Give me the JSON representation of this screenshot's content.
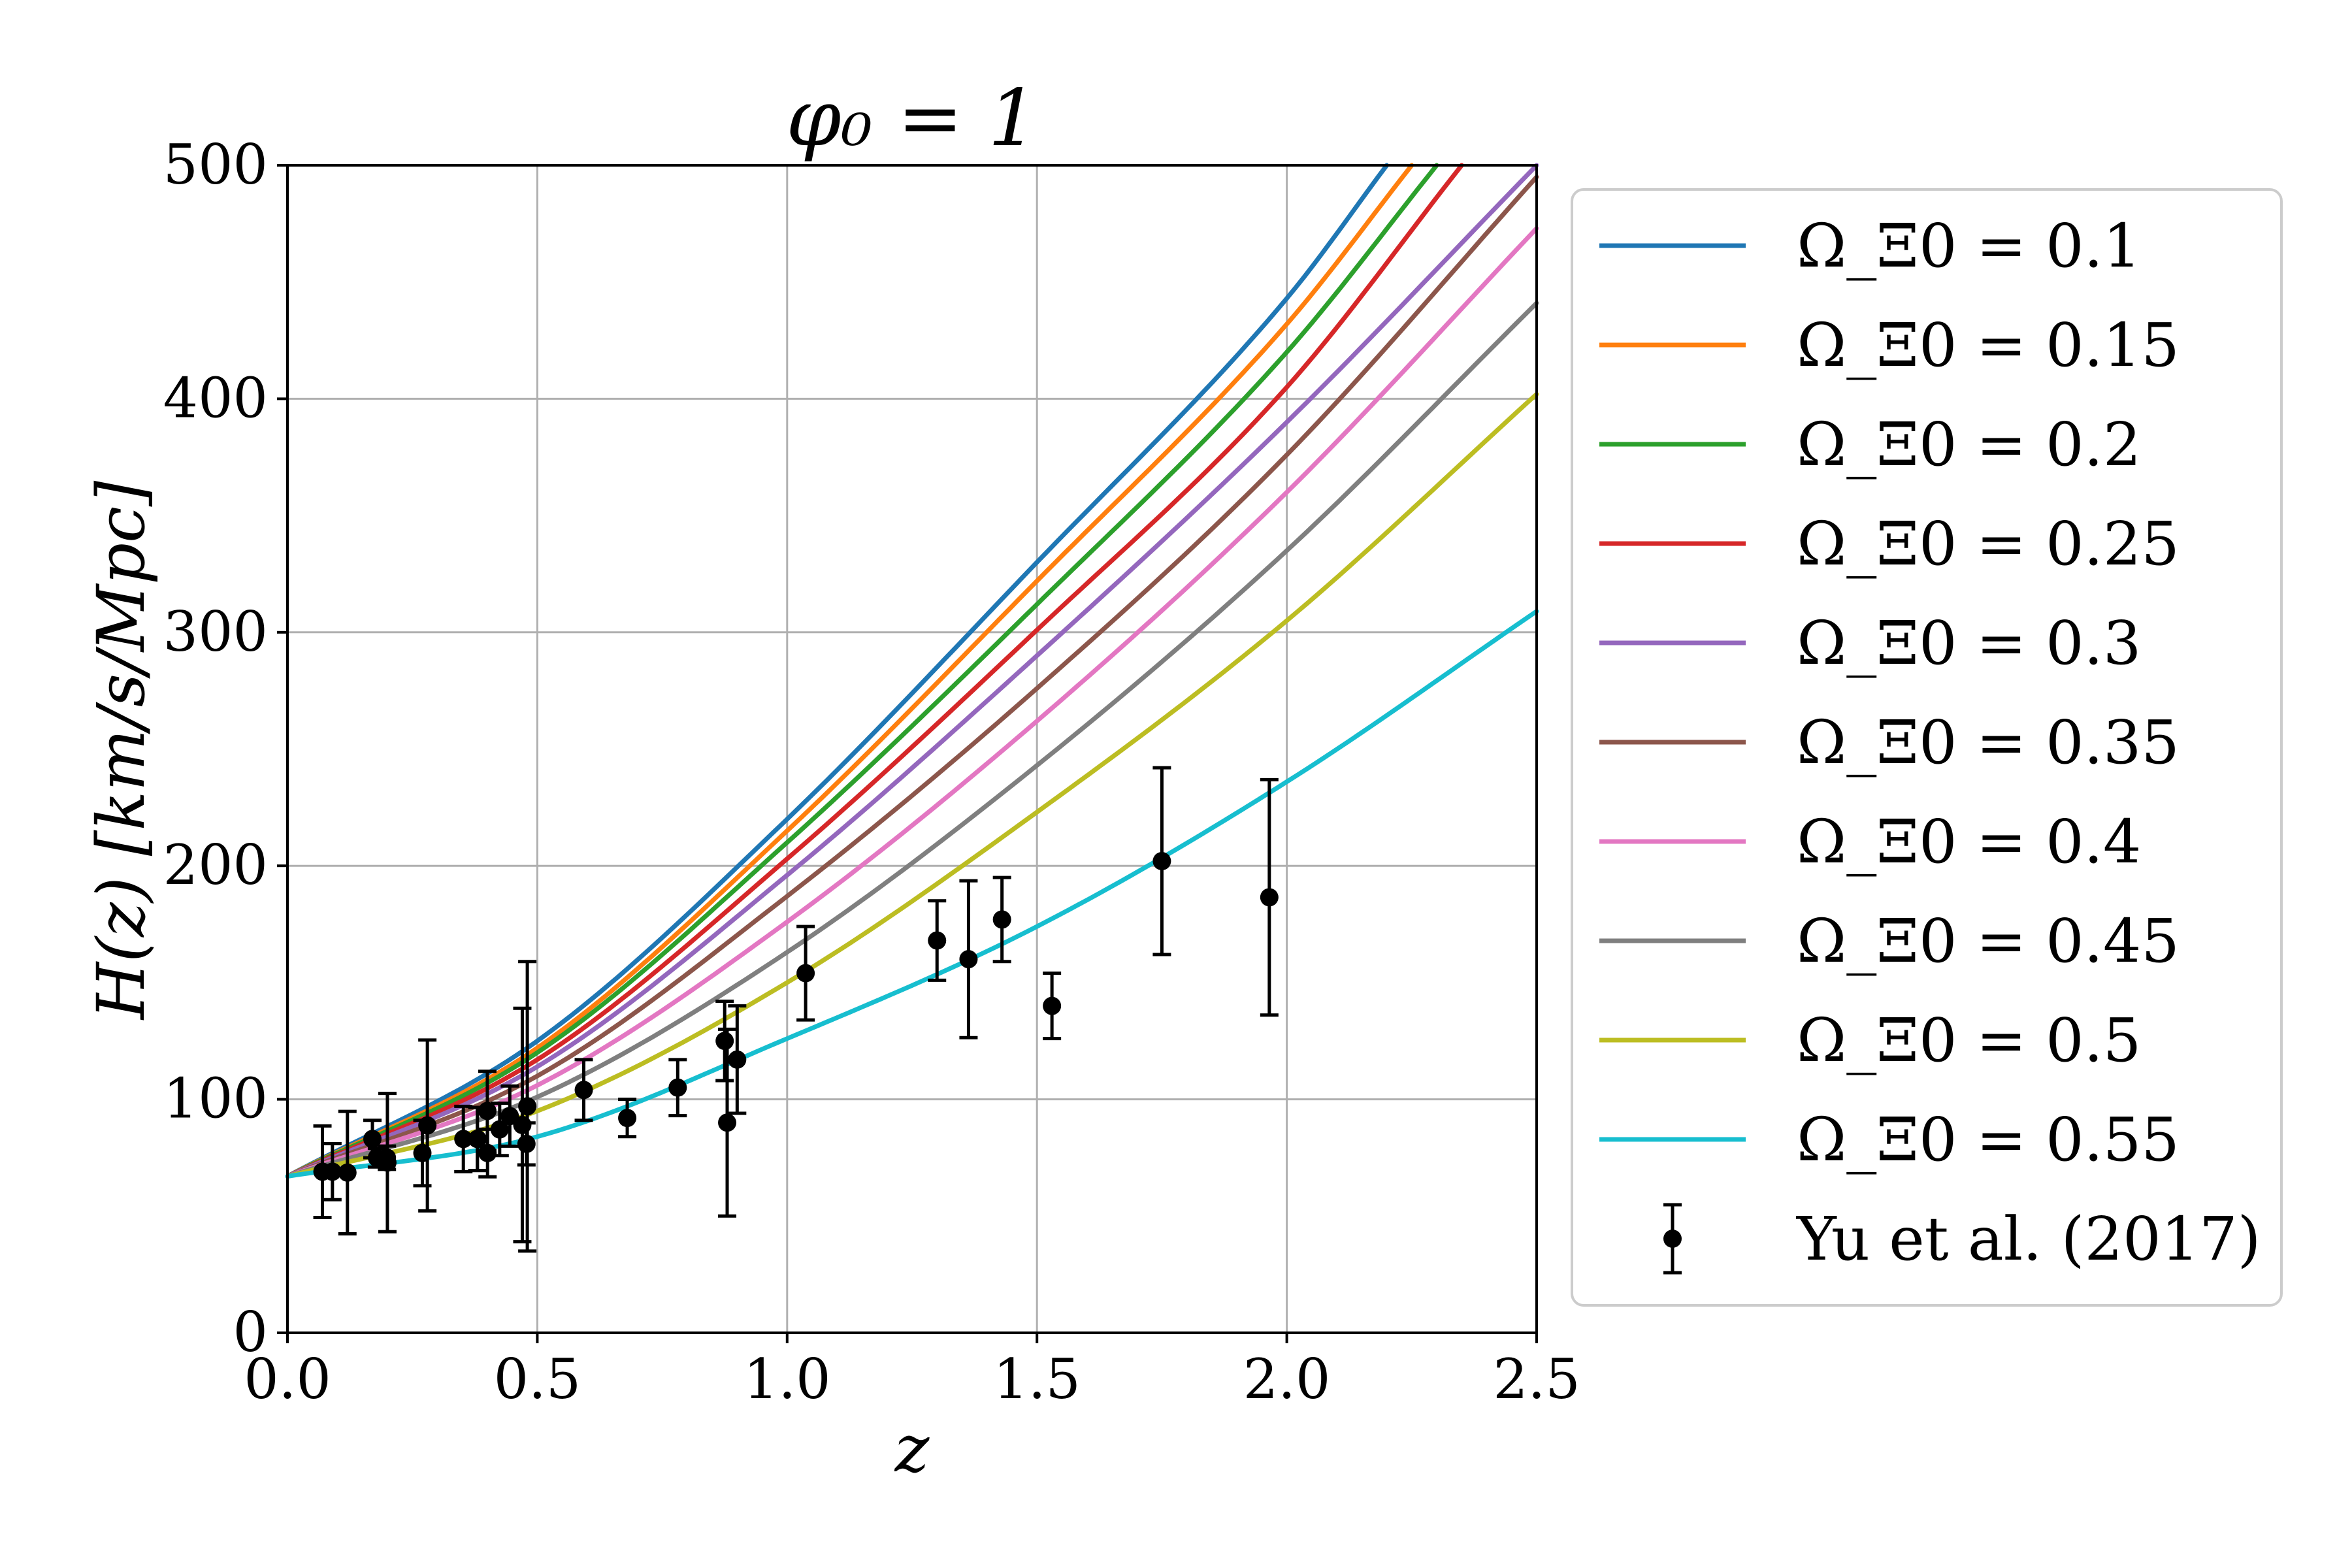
{
  "chart_data": {
    "type": "line",
    "title": "φ₀ = 1",
    "xlabel": "z",
    "ylabel": "H(z) [km/s/Mpc]",
    "xlim": [
      0.0,
      2.5
    ],
    "ylim": [
      0,
      500
    ],
    "x_ticks": [
      "0.0",
      "0.5",
      "1.0",
      "1.5",
      "2.0",
      "2.5"
    ],
    "y_ticks": [
      "0",
      "100",
      "200",
      "300",
      "400",
      "500"
    ],
    "grid": true,
    "legend_position": "right-outside",
    "series": [
      {
        "name": "Ω_Ξ0 = 0.1",
        "color": "#1f77b4",
        "x": [
          0,
          0.5,
          1.0,
          1.5,
          2.0,
          2.2
        ],
        "y": [
          67,
          125,
          220,
          330,
          443,
          500
        ]
      },
      {
        "name": "Ω_Ξ0 = 0.15",
        "color": "#ff7f0e",
        "x": [
          0,
          0.5,
          1.0,
          1.5,
          2.0,
          2.25
        ],
        "y": [
          67,
          122,
          215,
          322,
          432,
          500
        ]
      },
      {
        "name": "Ω_Ξ0 = 0.2",
        "color": "#2ca02c",
        "x": [
          0,
          0.5,
          1.0,
          1.5,
          2.0,
          2.3
        ],
        "y": [
          67,
          120,
          210,
          312,
          420,
          500
        ]
      },
      {
        "name": "Ω_Ξ0 = 0.25",
        "color": "#d62728",
        "x": [
          0,
          0.5,
          1.0,
          1.5,
          2.0,
          2.35
        ],
        "y": [
          67,
          117,
          203,
          301,
          405,
          500
        ]
      },
      {
        "name": "Ω_Ξ0 = 0.3",
        "color": "#9467bd",
        "x": [
          0,
          0.5,
          1.0,
          1.5,
          2.0,
          2.5
        ],
        "y": [
          67,
          114,
          196,
          290,
          390,
          500
        ]
      },
      {
        "name": "Ω_Ξ0 = 0.35",
        "color": "#8c564b",
        "x": [
          0,
          0.5,
          1.0,
          1.5,
          2.0,
          2.5
        ],
        "y": [
          67,
          110,
          187,
          276,
          376,
          495
        ]
      },
      {
        "name": "Ω_Ξ0 = 0.4",
        "color": "#e377c2",
        "x": [
          0,
          0.5,
          1.0,
          1.5,
          2.0,
          2.5
        ],
        "y": [
          67,
          106,
          176,
          262,
          360,
          473
        ]
      },
      {
        "name": "Ω_Ξ0 = 0.45",
        "color": "#7f7f7f",
        "x": [
          0,
          0.5,
          1.0,
          1.5,
          2.0,
          2.5
        ],
        "y": [
          67,
          101,
          163,
          243,
          335,
          441
        ]
      },
      {
        "name": "Ω_Ξ0 = 0.5",
        "color": "#bcbd22",
        "x": [
          0,
          0.5,
          1.0,
          1.5,
          2.0,
          2.5
        ],
        "y": [
          67,
          95,
          150,
          223,
          305,
          402
        ]
      },
      {
        "name": "Ω_Ξ0 = 0.55",
        "color": "#17becf",
        "x": [
          0,
          0.5,
          1.0,
          1.5,
          2.0,
          2.5
        ],
        "y": [
          67,
          84,
          126,
          174,
          236,
          309
        ]
      }
    ],
    "observations": {
      "name": "Yu et al. (2017)",
      "color": "#000000",
      "points": [
        {
          "x": 0.07,
          "y": 69,
          "err": 19.6
        },
        {
          "x": 0.09,
          "y": 69,
          "err": 12
        },
        {
          "x": 0.12,
          "y": 68.6,
          "err": 26.2
        },
        {
          "x": 0.17,
          "y": 83,
          "err": 8
        },
        {
          "x": 0.179,
          "y": 75,
          "err": 4
        },
        {
          "x": 0.199,
          "y": 75,
          "err": 5
        },
        {
          "x": 0.2,
          "y": 72.9,
          "err": 29.6
        },
        {
          "x": 0.27,
          "y": 77,
          "err": 14
        },
        {
          "x": 0.28,
          "y": 88.8,
          "err": 36.6
        },
        {
          "x": 0.352,
          "y": 83,
          "err": 14
        },
        {
          "x": 0.38,
          "y": 83,
          "err": 13.5
        },
        {
          "x": 0.3802,
          "y": 83,
          "err": 13.5
        },
        {
          "x": 0.4,
          "y": 95,
          "err": 17
        },
        {
          "x": 0.4004,
          "y": 77,
          "err": 10.2
        },
        {
          "x": 0.4247,
          "y": 87.1,
          "err": 11.2
        },
        {
          "x": 0.44497,
          "y": 92.8,
          "err": 12.9
        },
        {
          "x": 0.47,
          "y": 89,
          "err": 50
        },
        {
          "x": 0.4783,
          "y": 80.9,
          "err": 9
        },
        {
          "x": 0.48,
          "y": 97,
          "err": 62
        },
        {
          "x": 0.593,
          "y": 104,
          "err": 13
        },
        {
          "x": 0.68,
          "y": 92,
          "err": 8
        },
        {
          "x": 0.781,
          "y": 105,
          "err": 12
        },
        {
          "x": 0.875,
          "y": 125,
          "err": 17
        },
        {
          "x": 0.88,
          "y": 90,
          "err": 40
        },
        {
          "x": 0.9,
          "y": 117,
          "err": 23
        },
        {
          "x": 1.037,
          "y": 154,
          "err": 20
        },
        {
          "x": 1.3,
          "y": 168,
          "err": 17
        },
        {
          "x": 1.363,
          "y": 160,
          "err": 33.6
        },
        {
          "x": 1.43,
          "y": 177,
          "err": 18
        },
        {
          "x": 1.53,
          "y": 140,
          "err": 14
        },
        {
          "x": 1.75,
          "y": 202,
          "err": 40
        },
        {
          "x": 1.965,
          "y": 186.5,
          "err": 50.4
        }
      ]
    }
  }
}
